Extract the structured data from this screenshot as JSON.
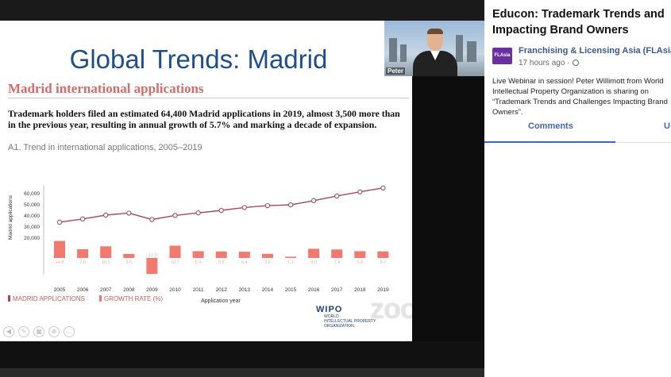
{
  "slide": {
    "title": "Global Trends: Madrid",
    "section_title": "Madrid international applications",
    "summary": "Trademark holders filed an estimated 64,400 Madrid applications in 2019, almost 3,500 more than in the previous year, resulting in annual growth of 5.7% and marking a decade of expansion.",
    "chart_caption": "A1. Trend in international applications, 2005–2019",
    "legend": {
      "applications": "MADRID APPLICATIONS",
      "growth": "GROWTH RATE (%)"
    },
    "wipo_logo": "WIPO",
    "wipo_sub": [
      "WORLD",
      "INTELLECTUAL PROPERTY",
      "ORGANIZATION"
    ],
    "zoom_watermark": "zoom",
    "colors": {
      "title": "#1f4e8c",
      "accent": "#d86a6a",
      "line": "#a44b5c",
      "bar": "#f07a6e"
    }
  },
  "chart_data": {
    "type": "bar",
    "title": "",
    "xlabel": "Application year",
    "ylabel": "Madrid applications",
    "categories": [
      "2005",
      "2006",
      "2007",
      "2008",
      "2009",
      "2010",
      "2011",
      "2012",
      "2013",
      "2014",
      "2015",
      "2016",
      "2017",
      "2018",
      "2019"
    ],
    "yticks": [
      "60,000",
      "50,000",
      "40,000",
      "30,000",
      "20,000"
    ],
    "ylim": [
      0,
      60000
    ],
    "series": [
      {
        "name": "MADRID APPLICATIONS",
        "kind": "line",
        "values": [
          33600,
          36500,
          40000,
          41800,
          36000,
          39700,
          42000,
          44200,
          46800,
          48500,
          49200,
          53000,
          57200,
          60900,
          64400
        ]
      },
      {
        "name": "GROWTH RATE (%)",
        "kind": "bar",
        "values": [
          14.8,
          7.6,
          10.1,
          3.5,
          -13.9,
          10.7,
          5.9,
          5.6,
          5.4,
          3.6,
          1.1,
          8.0,
          7.4,
          5.9,
          5.7
        ],
        "labels": [
          "14.8",
          "7.6",
          "10.1",
          "3.5",
          "-13.9",
          "10.7",
          "5.9",
          "5.6",
          "5.4",
          "3.6",
          "1.1",
          "8.0",
          "7.4",
          "5.9",
          "5.7"
        ]
      }
    ],
    "grid": false,
    "legend_position": "bottom-left"
  },
  "presenter": {
    "name": "Peter"
  },
  "panel": {
    "post_title": "Educon: Trademark Trends and Impacting Brand Owners",
    "page_name": "Franchising & Licensing Asia (FLAsia)",
    "page_avatar": "FLAsia",
    "post_time": "17 hours ago ·",
    "post_body": "Live Webinar in session! Peter Willimott from World Intellectual Property Organization is sharing on “Trademark Trends and Challenges Impacting Brand Owners”.",
    "tabs": [
      "Comments",
      "U"
    ]
  }
}
